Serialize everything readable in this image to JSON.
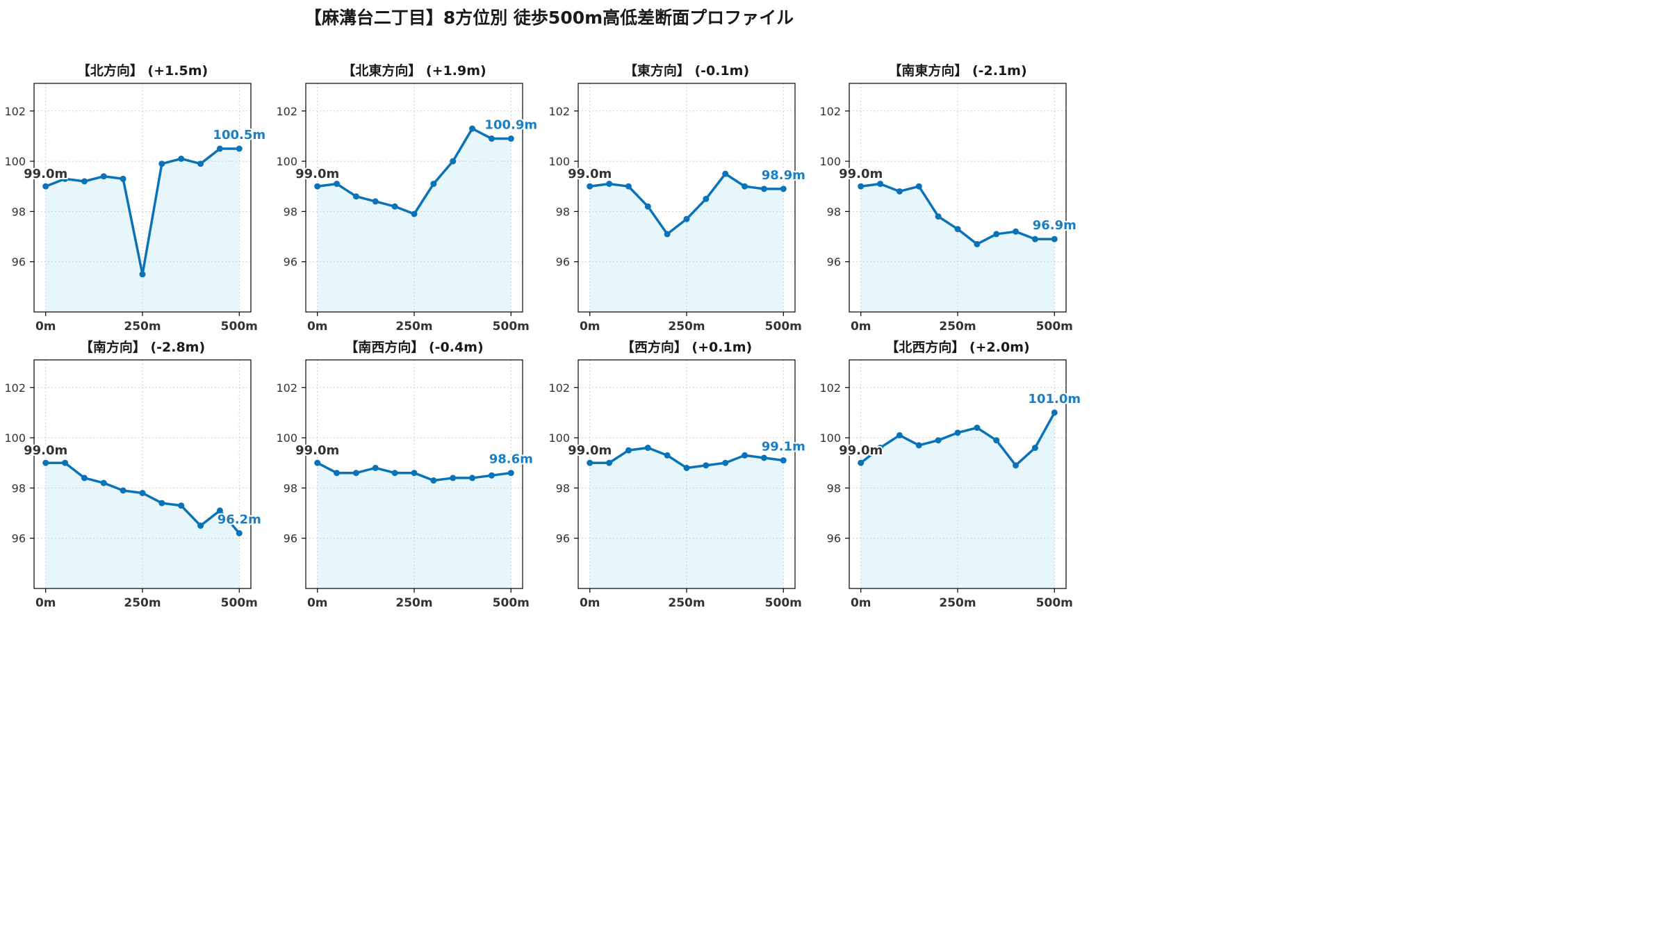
{
  "title": "【麻溝台二丁目】8方位別 徒歩500m高低差断面プロファイル",
  "colors": {
    "line": "#0a72b7",
    "fill": "#e7f6fb",
    "start_label": "#333333",
    "end_label": "#1a7ec2",
    "grid": "#cccccc",
    "axis": "#000000"
  },
  "chart_data": [
    {
      "type": "line",
      "title": "【北方向】 (+1.5m)",
      "x": [
        0,
        50,
        100,
        150,
        200,
        250,
        300,
        350,
        400,
        450,
        500
      ],
      "y": [
        99.0,
        99.3,
        99.2,
        99.4,
        99.3,
        95.5,
        99.9,
        100.1,
        99.9,
        100.5,
        100.5
      ],
      "start_label": "99.0m",
      "end_label": "100.5m"
    },
    {
      "type": "line",
      "title": "【北東方向】 (+1.9m)",
      "x": [
        0,
        50,
        100,
        150,
        200,
        250,
        300,
        350,
        400,
        450,
        500
      ],
      "y": [
        99.0,
        99.1,
        98.6,
        98.4,
        98.2,
        97.9,
        99.1,
        100.0,
        101.3,
        100.9,
        100.9
      ],
      "start_label": "99.0m",
      "end_label": "100.9m"
    },
    {
      "type": "line",
      "title": "【東方向】 (-0.1m)",
      "x": [
        0,
        50,
        100,
        150,
        200,
        250,
        300,
        350,
        400,
        450,
        500
      ],
      "y": [
        99.0,
        99.1,
        99.0,
        98.2,
        97.1,
        97.7,
        98.5,
        99.5,
        99.0,
        98.9,
        98.9
      ],
      "start_label": "99.0m",
      "end_label": "98.9m"
    },
    {
      "type": "line",
      "title": "【南東方向】 (-2.1m)",
      "x": [
        0,
        50,
        100,
        150,
        200,
        250,
        300,
        350,
        400,
        450,
        500
      ],
      "y": [
        99.0,
        99.1,
        98.8,
        99.0,
        97.8,
        97.3,
        96.7,
        97.1,
        97.2,
        96.9,
        96.9
      ],
      "start_label": "99.0m",
      "end_label": "96.9m"
    },
    {
      "type": "line",
      "title": "【南方向】 (-2.8m)",
      "x": [
        0,
        50,
        100,
        150,
        200,
        250,
        300,
        350,
        400,
        450,
        500
      ],
      "y": [
        99.0,
        99.0,
        98.4,
        98.2,
        97.9,
        97.8,
        97.4,
        97.3,
        96.5,
        97.1,
        96.2
      ],
      "start_label": "99.0m",
      "end_label": "96.2m"
    },
    {
      "type": "line",
      "title": "【南西方向】 (-0.4m)",
      "x": [
        0,
        50,
        100,
        150,
        200,
        250,
        300,
        350,
        400,
        450,
        500
      ],
      "y": [
        99.0,
        98.6,
        98.6,
        98.8,
        98.6,
        98.6,
        98.3,
        98.4,
        98.4,
        98.5,
        98.6
      ],
      "start_label": "99.0m",
      "end_label": "98.6m"
    },
    {
      "type": "line",
      "title": "【西方向】 (+0.1m)",
      "x": [
        0,
        50,
        100,
        150,
        200,
        250,
        300,
        350,
        400,
        450,
        500
      ],
      "y": [
        99.0,
        99.0,
        99.5,
        99.6,
        99.3,
        98.8,
        98.9,
        99.0,
        99.3,
        99.2,
        99.1
      ],
      "start_label": "99.0m",
      "end_label": "99.1m"
    },
    {
      "type": "line",
      "title": "【北西方向】 (+2.0m)",
      "x": [
        0,
        50,
        100,
        150,
        200,
        250,
        300,
        350,
        400,
        450,
        500
      ],
      "y": [
        99.0,
        99.6,
        100.1,
        99.7,
        99.9,
        100.2,
        100.4,
        99.9,
        98.9,
        99.6,
        101.0
      ],
      "start_label": "99.0m",
      "end_label": "101.0m"
    }
  ],
  "axes": {
    "xlim": [
      -30,
      530
    ],
    "ylim": [
      94.0,
      103.1
    ],
    "xticks": [
      0,
      250,
      500
    ],
    "xtick_labels": [
      "0m",
      "250m",
      "500m"
    ],
    "yticks": [
      96,
      98,
      100,
      102
    ],
    "ytick_labels": [
      "96",
      "98",
      "100",
      "102"
    ],
    "grid": true
  }
}
